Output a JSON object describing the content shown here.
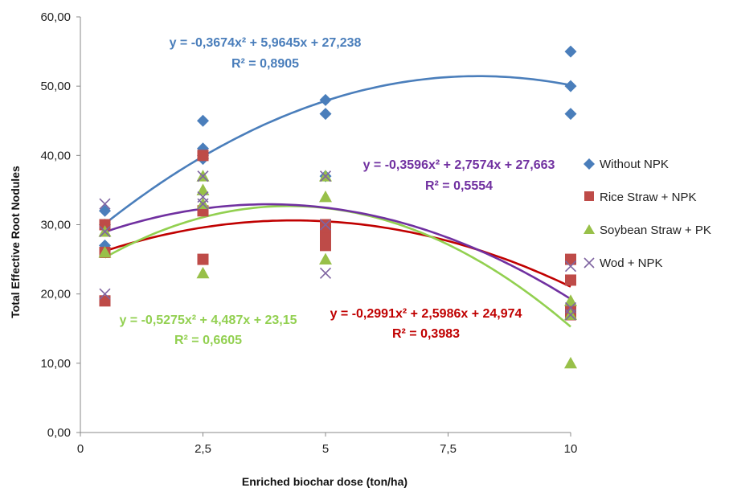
{
  "chart_data": {
    "type": "scatter",
    "title": "",
    "xlabel": "Enriched biochar dose (ton/ha)",
    "ylabel": "Total Effective Root Nodules",
    "xlim": [
      0,
      10
    ],
    "ylim": [
      0,
      60
    ],
    "x_tick_labels": [
      "0",
      "2,5",
      "5",
      "7,5",
      "10"
    ],
    "y_tick_labels": [
      "0,00",
      "10,00",
      "20,00",
      "30,00",
      "40,00",
      "50,00",
      "60,00"
    ],
    "grid": false,
    "legend_position": "right",
    "series": [
      {
        "name": "Without NPK",
        "color": "#4a7ebb",
        "marker": "diamond",
        "points": [
          [
            0.5,
            32
          ],
          [
            0.5,
            30
          ],
          [
            0.5,
            27
          ],
          [
            2.5,
            45
          ],
          [
            2.5,
            41
          ],
          [
            2.5,
            40
          ],
          [
            2.5,
            39.5
          ],
          [
            5,
            48
          ],
          [
            5,
            46
          ],
          [
            5,
            37
          ],
          [
            10,
            55
          ],
          [
            10,
            50
          ],
          [
            10,
            46
          ]
        ],
        "trend": {
          "a": -0.3674,
          "b": 5.9645,
          "c": 27.238,
          "equation": "y = -0,3674x² + 5,9645x + 27,238",
          "r2": "R² = 0,8905",
          "color": "#4a7ebb"
        }
      },
      {
        "name": "Rice Straw + NPK",
        "color": "#be4b48",
        "marker": "square",
        "points": [
          [
            0.5,
            30
          ],
          [
            0.5,
            26
          ],
          [
            0.5,
            19
          ],
          [
            2.5,
            40
          ],
          [
            2.5,
            32
          ],
          [
            2.5,
            25
          ],
          [
            5,
            30
          ],
          [
            5,
            29
          ],
          [
            5,
            28
          ],
          [
            5,
            27
          ],
          [
            10,
            25
          ],
          [
            10,
            22
          ],
          [
            10,
            17.5
          ],
          [
            10,
            17
          ]
        ],
        "trend": {
          "a": -0.2991,
          "b": 2.5986,
          "c": 24.974,
          "equation": "y = -0,2991x² + 2,5986x + 24,974",
          "r2": "R² = 0,3983",
          "color": "#c00000"
        }
      },
      {
        "name": "Soybean Straw + PK",
        "color": "#98c049",
        "marker": "triangle",
        "points": [
          [
            0.5,
            29
          ],
          [
            0.5,
            26
          ],
          [
            2.5,
            37
          ],
          [
            2.5,
            35
          ],
          [
            2.5,
            33
          ],
          [
            2.5,
            23
          ],
          [
            5,
            37
          ],
          [
            5,
            34
          ],
          [
            5,
            25
          ],
          [
            10,
            19
          ],
          [
            10,
            17
          ],
          [
            10,
            10
          ]
        ],
        "trend": {
          "a": -0.5275,
          "b": 4.487,
          "c": 23.15,
          "equation": "y = -0,5275x² + 4,487x + 23,15",
          "r2": "R² = 0,6605",
          "color": "#92d050"
        }
      },
      {
        "name": "Wod + NPK",
        "color": "#7f64a1",
        "marker": "x",
        "points": [
          [
            0.5,
            33
          ],
          [
            0.5,
            29
          ],
          [
            0.5,
            20
          ],
          [
            2.5,
            37
          ],
          [
            2.5,
            34
          ],
          [
            2.5,
            33
          ],
          [
            5,
            37
          ],
          [
            5,
            30
          ],
          [
            5,
            23
          ],
          [
            10,
            24
          ],
          [
            10,
            18
          ],
          [
            10,
            17
          ]
        ],
        "trend": {
          "a": -0.3596,
          "b": 2.7574,
          "c": 27.663,
          "equation": "y = -0,3596x² + 2,7574x + 27,663",
          "r2": "R² = 0,5554",
          "color": "#7030a0"
        }
      }
    ]
  }
}
